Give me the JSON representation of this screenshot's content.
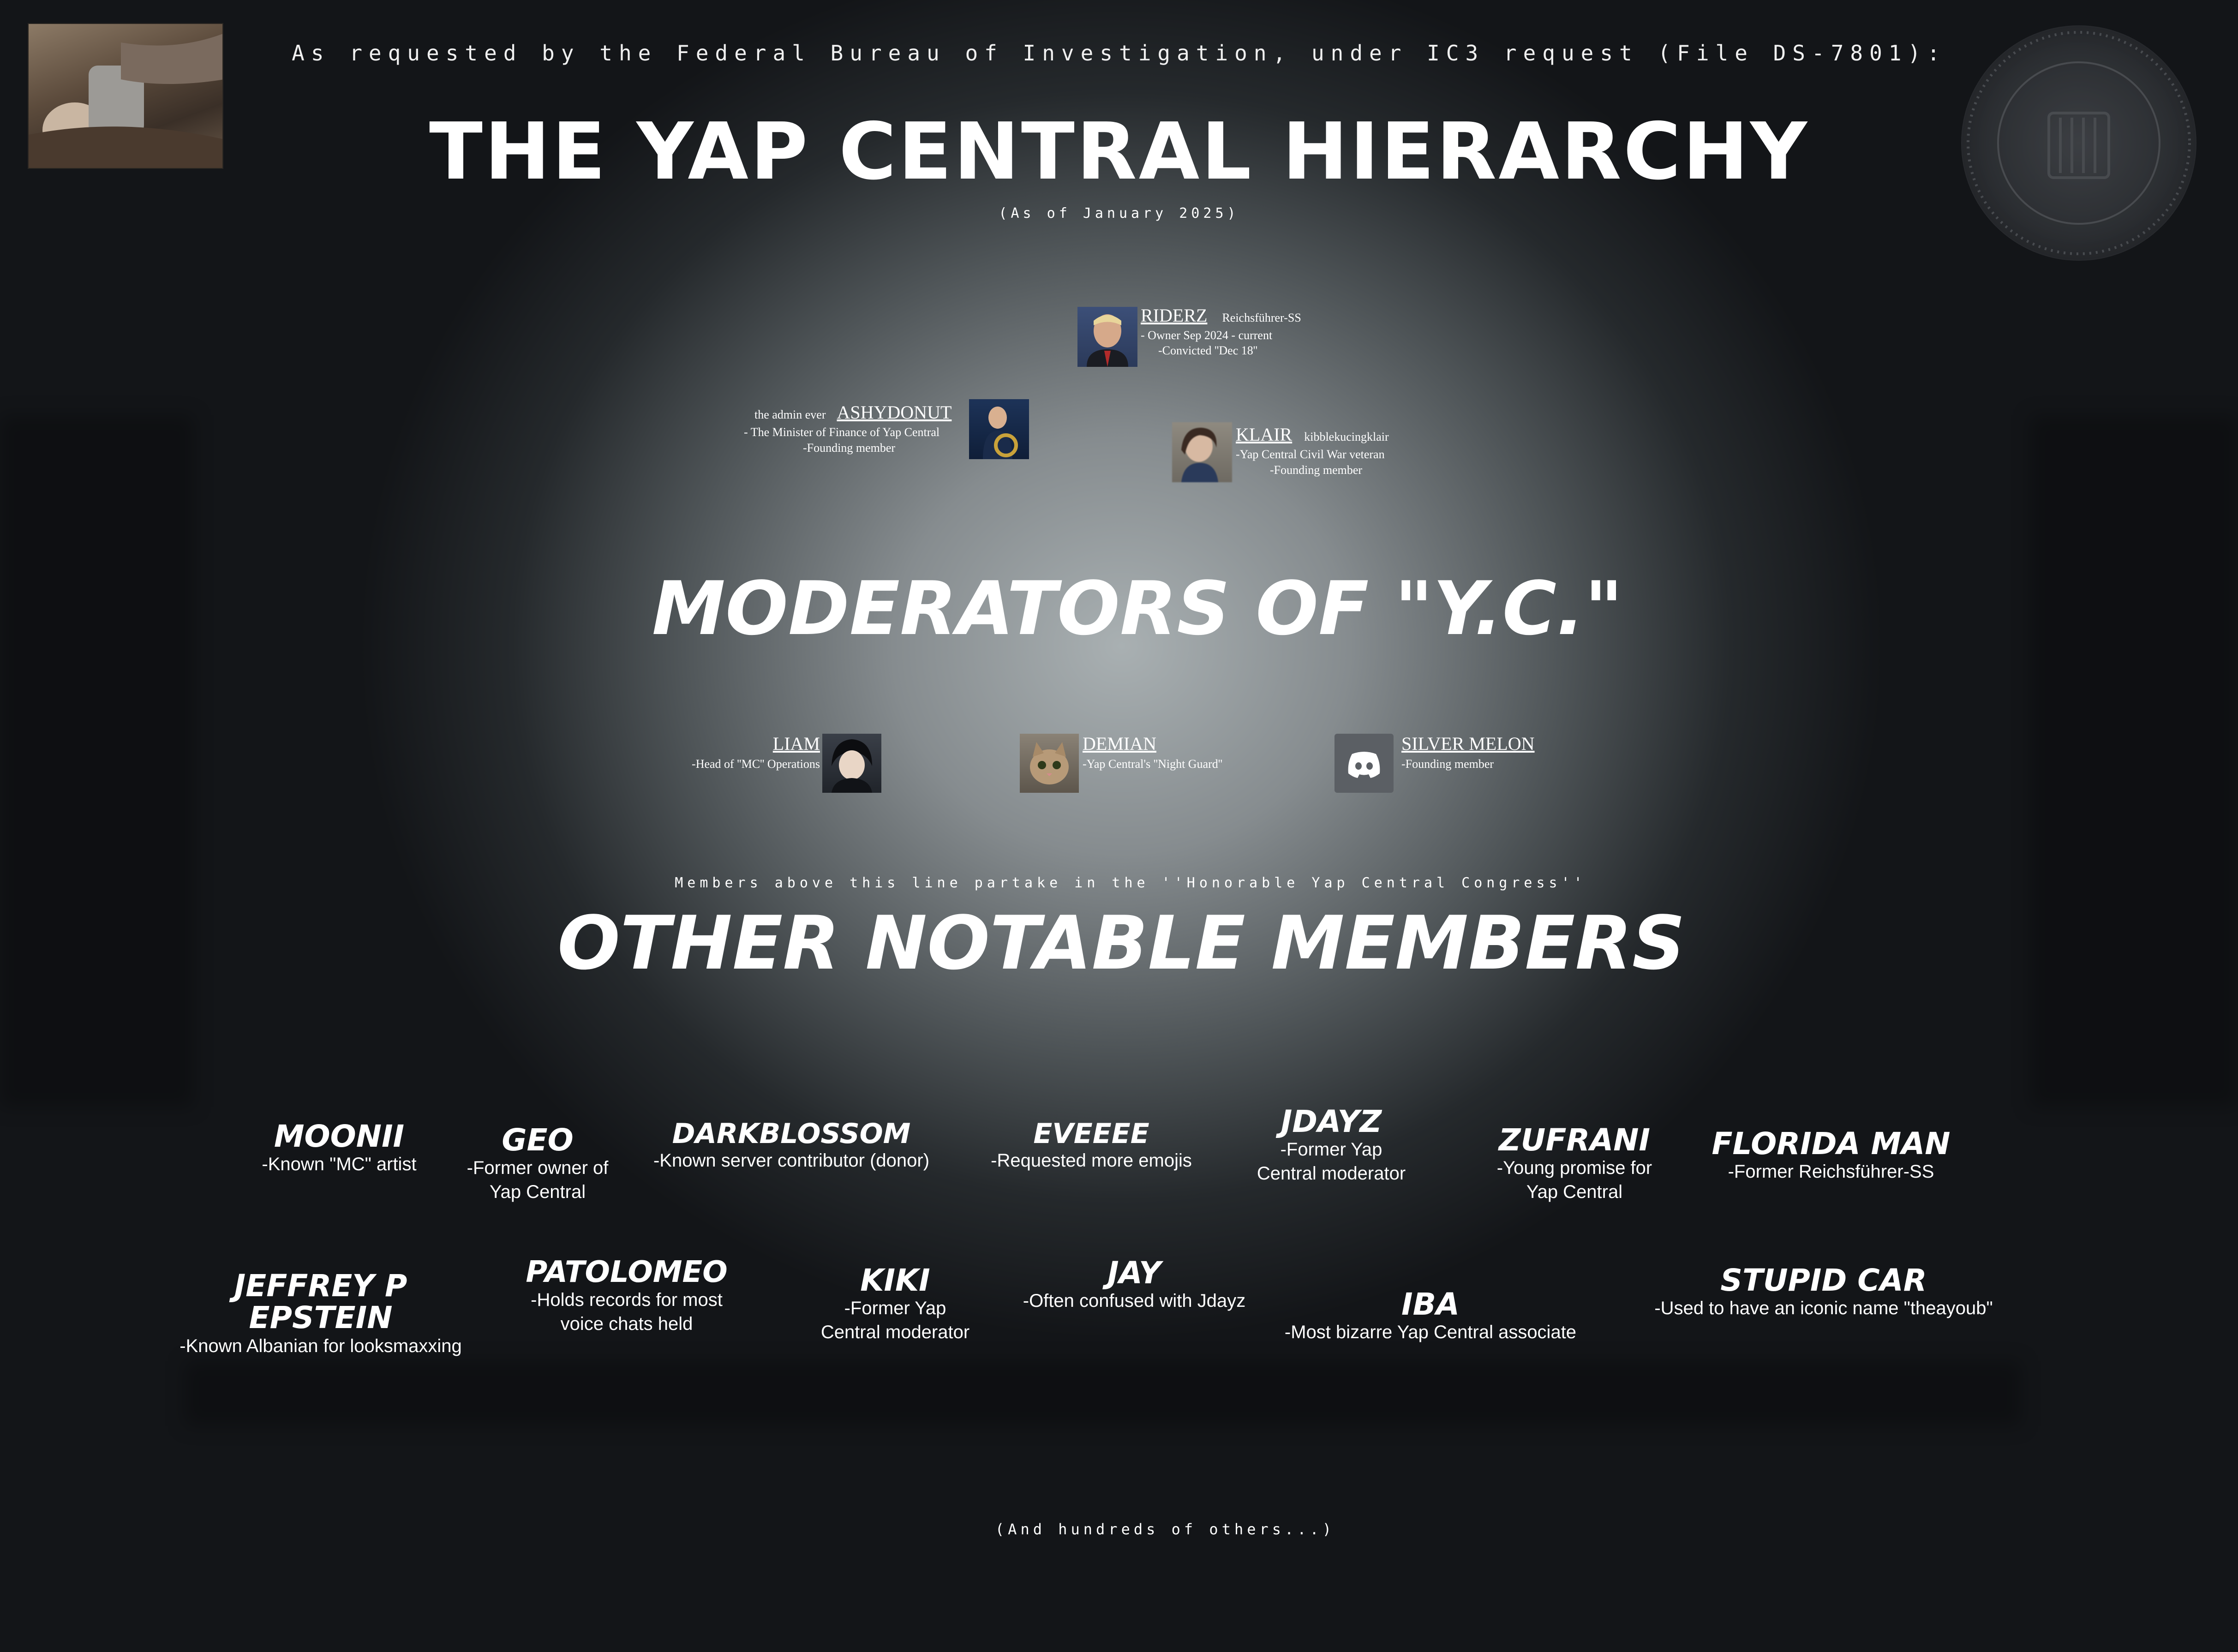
{
  "header": {
    "request_line": "As requested by the Federal Bureau of Investigation, under IC3 request (File DS-7801):",
    "title": "THE YAP CENTRAL HIERARCHY",
    "date_line": "(As of January 2025)"
  },
  "leaders": {
    "riderz": {
      "name": "RIDERZ",
      "tag": "Reichsführer-SS",
      "line1": "- Owner  Sep 2024 - current",
      "line2": "-Convicted ''Dec 18''"
    },
    "ashydonut": {
      "prefix": "the admin ever",
      "name": "ASHYDONUT",
      "line1": "- The Minister of Finance of Yap Central",
      "line2": "-Founding member"
    },
    "klair": {
      "name": "KLAIR",
      "tag": "kibblekucingklair",
      "line1": "-Yap Central Civil War veteran",
      "line2": "-Founding member"
    }
  },
  "moderators_heading": "MODERATORS OF \"Y.C.\"",
  "moderators": {
    "liam": {
      "name": "LIAM",
      "desc": "-Head of ''MC'' Operations"
    },
    "demian": {
      "name": "DEMIAN",
      "desc": "-Yap Central's ''Night Guard''"
    },
    "silver_melon": {
      "name": "SILVER MELON",
      "desc": "-Founding member"
    }
  },
  "congress_note": "Members above this line partake in the ''Honorable Yap Central Congress''",
  "others_heading": "OTHER NOTABLE MEMBERS",
  "members": {
    "moonii": {
      "name": "MOONII",
      "desc": "-Known \"MC\" artist"
    },
    "geo": {
      "name": "GEO",
      "desc": "-Former owner of Yap Central"
    },
    "darkblossom": {
      "name": "DARKBLOSSOM",
      "desc": "-Known server contributor (donor)"
    },
    "eveeee": {
      "name": "EVEEEE",
      "desc": "-Requested more emojis"
    },
    "jdayz": {
      "name": "JDAYZ",
      "desc": "-Former Yap Central moderator"
    },
    "zufrani": {
      "name": "ZUFRANI",
      "desc": "-Young promise for Yap Central"
    },
    "florida_man": {
      "name": "FLORIDA MAN",
      "desc": "-Former Reichsführer-SS"
    },
    "epstein": {
      "name": "JEFFREY P EPSTEIN",
      "desc": "-Known Albanian for looksmaxxing"
    },
    "patolomeo": {
      "name": "PATOLOMEO",
      "desc": "-Holds records for most voice chats held"
    },
    "kiki": {
      "name": "KIKI",
      "desc": "-Former Yap Central moderator"
    },
    "jay": {
      "name": "JAY",
      "desc": "-Often confused with Jdayz"
    },
    "iba": {
      "name": "IBA",
      "desc": "-Most bizarre Yap Central associate"
    },
    "stupid_car": {
      "name": "STUPID CAR",
      "desc": "-Used to have an iconic name \"theayoub\""
    }
  },
  "footer": "(And hundreds of others...)",
  "icons": {
    "seal": "fbi-seal-icon",
    "discord": "discord-icon",
    "corner_photo": "bed-photo"
  },
  "colors": {
    "text": "#ffffff",
    "background_dark": "#131518",
    "spotlight": "#a9b0b2",
    "discord_tile": "#5b5f64"
  }
}
